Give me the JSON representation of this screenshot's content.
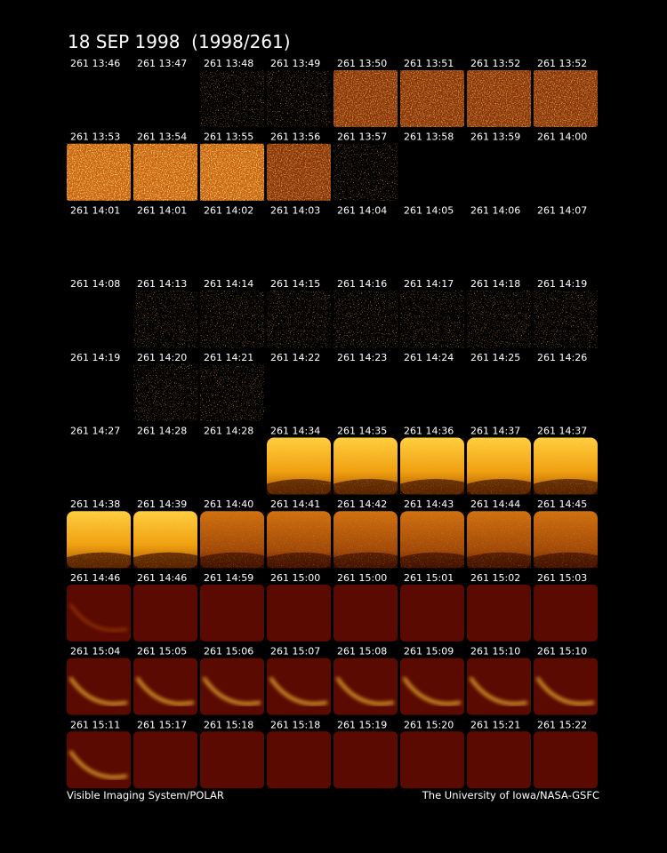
{
  "title": "18 SEP 1998  (1998/261)",
  "rows": [
    [
      "261 13:46",
      "261 13:47",
      "261 13:48",
      "261 13:49",
      "261 13:50",
      "261 13:51",
      "261 13:52",
      "261 13:52"
    ],
    [
      "261 13:53",
      "261 13:54",
      "261 13:55",
      "261 13:56",
      "261 13:57",
      "261 13:58",
      "261 13:59",
      "261 14:00"
    ],
    [
      "261 14:01",
      "261 14:01",
      "261 14:02",
      "261 14:03",
      "261 14:04",
      "261 14:05",
      "261 14:06",
      "261 14:07"
    ],
    [
      "261 14:08",
      "261 14:13",
      "261 14:14",
      "261 14:15",
      "261 14:16",
      "261 14:17",
      "261 14:18",
      "261 14:19"
    ],
    [
      "261 14:19",
      "261 14:20",
      "261 14:21",
      "261 14:22",
      "261 14:23",
      "261 14:24",
      "261 14:25",
      "261 14:26"
    ],
    [
      "261 14:27",
      "261 14:28",
      "261 14:28",
      "261 14:34",
      "261 14:35",
      "261 14:36",
      "261 14:37",
      "261 14:37"
    ],
    [
      "261 14:38",
      "261 14:39",
      "261 14:40",
      "261 14:41",
      "261 14:42",
      "261 14:43",
      "261 14:44",
      "261 14:45"
    ],
    [
      "261 14:46",
      "261 14:46",
      "261 14:59",
      "261 15:00",
      "261 15:00",
      "261 15:01",
      "261 15:02",
      "261 15:03"
    ],
    [
      "261 15:04",
      "261 15:05",
      "261 15:06",
      "261 15:07",
      "261 15:08",
      "261 15:09",
      "261 15:10",
      "261 15:10"
    ],
    [
      "261 15:11",
      "261 15:17",
      "261 15:18",
      "261 15:18",
      "261 15:19",
      "261 15:20",
      "261 15:21",
      "261 15:22"
    ]
  ],
  "footer": {
    "left": "Visible Imaging System/POLAR",
    "right": "The University of Iowa/NASA-GSFC"
  }
}
